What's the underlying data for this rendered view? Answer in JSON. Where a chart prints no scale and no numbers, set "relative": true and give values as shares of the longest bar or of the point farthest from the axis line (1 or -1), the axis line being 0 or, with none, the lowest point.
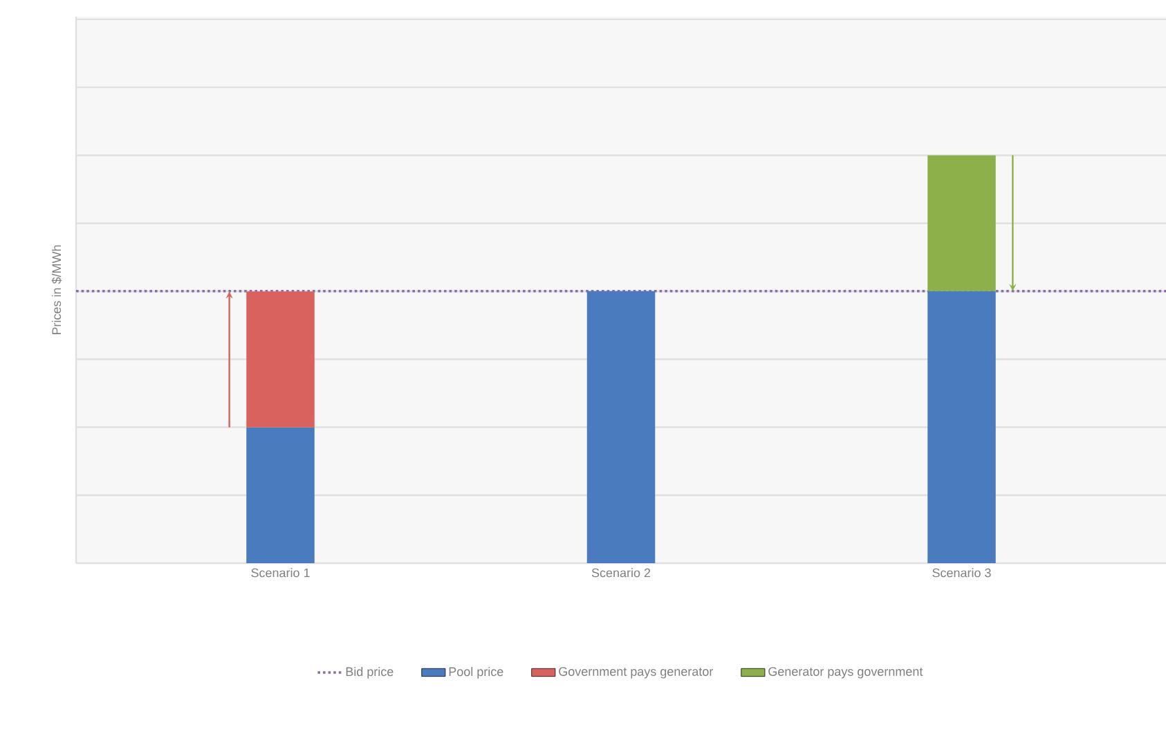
{
  "chart_data": {
    "type": "bar",
    "stacked": true,
    "relative": true,
    "ylabel": "Prices in $/MWh",
    "categories": [
      "Scenario 1",
      "Scenario 2",
      "Scenario 3"
    ],
    "series": [
      {
        "name": "Pool price",
        "color": "#4a7bbf",
        "values": [
          0.333,
          0.667,
          0.667
        ]
      },
      {
        "name": "Government pays generator",
        "color": "#d9625e",
        "values": [
          0.333,
          null,
          null
        ]
      },
      {
        "name": "Generator pays government",
        "color": "#8db04a",
        "values": [
          null,
          null,
          0.333
        ]
      }
    ],
    "ref_lines": [
      {
        "axis": "y",
        "value": 0.667,
        "label": "Bid price",
        "color": "#8e6bb0",
        "line_style": "dotted"
      }
    ],
    "grid": "y",
    "legend": "bottom"
  }
}
